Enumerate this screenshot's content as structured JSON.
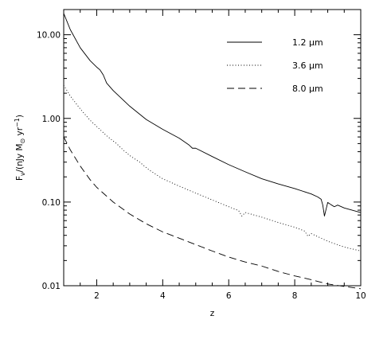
{
  "chart_data": {
    "type": "line",
    "title": "",
    "xlabel": "z",
    "ylabel": {
      "pre": "F",
      "sub": "ν",
      "mid": "/(nJy M",
      "sub2": "⊙",
      "post": " yr",
      "sup": "−1",
      "close": ")"
    },
    "xlim": [
      1,
      10
    ],
    "ylim": [
      0.01,
      20
    ],
    "yscale": "log",
    "grid": false,
    "legend_position": "top-right",
    "x_ticks": [
      "2",
      "4",
      "6",
      "8",
      "10"
    ],
    "y_ticks": [
      "0.01",
      "0.10",
      "1.00",
      "10.00"
    ],
    "series": [
      {
        "name": "1.2 μm",
        "style": "solid",
        "x": [
          1.0,
          1.2,
          1.5,
          1.8,
          2.0,
          2.1,
          2.2,
          2.3,
          2.5,
          3.0,
          3.5,
          4.0,
          4.5,
          4.8,
          4.9,
          5.0,
          5.5,
          6.0,
          6.5,
          7.0,
          7.5,
          8.0,
          8.5,
          8.7,
          8.8,
          8.85,
          8.9,
          8.95,
          9.0,
          9.1,
          9.2,
          9.3,
          9.5,
          10.0
        ],
        "y": [
          18.0,
          11.5,
          7.0,
          4.9,
          4.1,
          3.8,
          3.3,
          2.65,
          2.15,
          1.4,
          0.97,
          0.74,
          0.58,
          0.48,
          0.44,
          0.44,
          0.35,
          0.28,
          0.23,
          0.19,
          0.165,
          0.145,
          0.125,
          0.115,
          0.108,
          0.092,
          0.068,
          0.082,
          0.099,
          0.093,
          0.088,
          0.092,
          0.085,
          0.075
        ]
      },
      {
        "name": "3.6 μm",
        "style": "dotted",
        "x": [
          1.0,
          1.2,
          1.5,
          1.8,
          2.0,
          2.3,
          2.6,
          2.8,
          3.0,
          3.3,
          3.6,
          4.0,
          4.5,
          5.0,
          5.5,
          6.0,
          6.3,
          6.4,
          6.5,
          7.0,
          7.5,
          8.0,
          8.3,
          8.4,
          8.5,
          9.0,
          9.5,
          10.0
        ],
        "y": [
          2.5,
          1.85,
          1.3,
          0.95,
          0.8,
          0.62,
          0.5,
          0.42,
          0.36,
          0.3,
          0.24,
          0.19,
          0.155,
          0.128,
          0.106,
          0.088,
          0.079,
          0.068,
          0.075,
          0.066,
          0.057,
          0.05,
          0.045,
          0.039,
          0.042,
          0.034,
          0.029,
          0.026
        ]
      },
      {
        "name": "8.0 μm",
        "style": "dashed",
        "x": [
          1.0,
          1.2,
          1.5,
          1.8,
          2.0,
          2.5,
          3.0,
          3.5,
          4.0,
          4.5,
          5.0,
          5.5,
          6.0,
          6.5,
          7.0,
          7.5,
          8.0,
          8.5,
          9.0,
          9.5,
          10.0
        ],
        "y": [
          0.6,
          0.42,
          0.27,
          0.185,
          0.15,
          0.1,
          0.072,
          0.055,
          0.044,
          0.037,
          0.031,
          0.026,
          0.022,
          0.0192,
          0.0172,
          0.0148,
          0.0131,
          0.0118,
          0.0105,
          0.0098,
          0.0092
        ]
      }
    ]
  }
}
